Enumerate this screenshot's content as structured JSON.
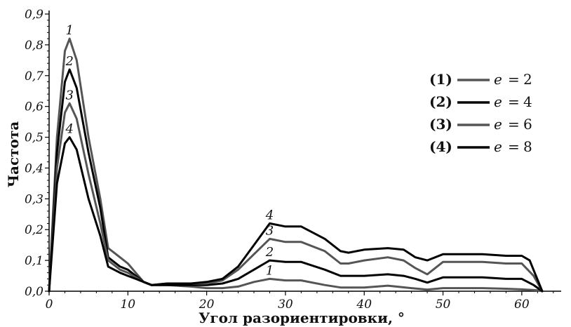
{
  "chart_data": {
    "type": "line",
    "xlabel": "Угол разориентировки, °",
    "ylabel": "Частота",
    "xlim": [
      0,
      65
    ],
    "ylim": [
      0,
      0.9
    ],
    "xticks": [
      "0",
      "10",
      "20",
      "30",
      "40",
      "50",
      "60"
    ],
    "yticks": [
      "0,0",
      "0,1",
      "0,2",
      "0,3",
      "0,4",
      "0,5",
      "0,6",
      "0,7",
      "0,8",
      "0,9"
    ],
    "grid": false,
    "legend_position": "right",
    "series": [
      {
        "id": "1",
        "label": "(1)",
        "legend_var": "e",
        "legend_value": "2",
        "color": "#555555",
        "peak_label": {
          "x": 2.6,
          "y": 0.82
        },
        "mid_label": {
          "x": 28,
          "y": 0.04
        },
        "points": [
          [
            0,
            0
          ],
          [
            1,
            0.5
          ],
          [
            2,
            0.78
          ],
          [
            2.6,
            0.82
          ],
          [
            3.5,
            0.75
          ],
          [
            5,
            0.5
          ],
          [
            6.5,
            0.3
          ],
          [
            7.5,
            0.14
          ],
          [
            9,
            0.11
          ],
          [
            10,
            0.09
          ],
          [
            11,
            0.06
          ],
          [
            12,
            0.03
          ],
          [
            13,
            0.02
          ],
          [
            15,
            0.02
          ],
          [
            18,
            0.015
          ],
          [
            20,
            0.01
          ],
          [
            22,
            0.01
          ],
          [
            24,
            0.015
          ],
          [
            26,
            0.03
          ],
          [
            28,
            0.04
          ],
          [
            30,
            0.035
          ],
          [
            32,
            0.035
          ],
          [
            35,
            0.02
          ],
          [
            37,
            0.012
          ],
          [
            40,
            0.012
          ],
          [
            43,
            0.018
          ],
          [
            46,
            0.01
          ],
          [
            48,
            0.005
          ],
          [
            50,
            0.01
          ],
          [
            55,
            0.01
          ],
          [
            58,
            0.008
          ],
          [
            60,
            0.006
          ],
          [
            62,
            0.003
          ],
          [
            62.6,
            0
          ]
        ]
      },
      {
        "id": "2",
        "label": "(2)",
        "legend_var": "e",
        "legend_value": "4",
        "color": "#000000",
        "peak_label": {
          "x": 2.6,
          "y": 0.72
        },
        "mid_label": {
          "x": 28,
          "y": 0.1
        },
        "points": [
          [
            0,
            0
          ],
          [
            1,
            0.45
          ],
          [
            2,
            0.68
          ],
          [
            2.6,
            0.72
          ],
          [
            3.5,
            0.66
          ],
          [
            5,
            0.45
          ],
          [
            6.5,
            0.27
          ],
          [
            7.5,
            0.11
          ],
          [
            9,
            0.08
          ],
          [
            10,
            0.07
          ],
          [
            11,
            0.05
          ],
          [
            12,
            0.03
          ],
          [
            13,
            0.02
          ],
          [
            15,
            0.02
          ],
          [
            18,
            0.02
          ],
          [
            20,
            0.02
          ],
          [
            22,
            0.025
          ],
          [
            24,
            0.04
          ],
          [
            26,
            0.07
          ],
          [
            28,
            0.1
          ],
          [
            30,
            0.095
          ],
          [
            32,
            0.095
          ],
          [
            35,
            0.07
          ],
          [
            37,
            0.05
          ],
          [
            40,
            0.05
          ],
          [
            43,
            0.055
          ],
          [
            45,
            0.05
          ],
          [
            46.5,
            0.04
          ],
          [
            48,
            0.028
          ],
          [
            50,
            0.045
          ],
          [
            55,
            0.045
          ],
          [
            58,
            0.04
          ],
          [
            60,
            0.04
          ],
          [
            61.5,
            0.02
          ],
          [
            62.6,
            0
          ]
        ]
      },
      {
        "id": "3",
        "label": "(3)",
        "legend_var": "e",
        "legend_value": "6",
        "color": "#555555",
        "peak_label": {
          "x": 2.6,
          "y": 0.61
        },
        "mid_label": {
          "x": 28,
          "y": 0.17
        },
        "points": [
          [
            0,
            0
          ],
          [
            1,
            0.4
          ],
          [
            2,
            0.58
          ],
          [
            2.6,
            0.61
          ],
          [
            3.5,
            0.56
          ],
          [
            5,
            0.38
          ],
          [
            6.5,
            0.22
          ],
          [
            7.5,
            0.1
          ],
          [
            9,
            0.07
          ],
          [
            10,
            0.06
          ],
          [
            11,
            0.045
          ],
          [
            12,
            0.03
          ],
          [
            13,
            0.02
          ],
          [
            15,
            0.025
          ],
          [
            18,
            0.025
          ],
          [
            20,
            0.025
          ],
          [
            22,
            0.035
          ],
          [
            24,
            0.07
          ],
          [
            26,
            0.12
          ],
          [
            28,
            0.17
          ],
          [
            30,
            0.16
          ],
          [
            32,
            0.16
          ],
          [
            35,
            0.13
          ],
          [
            37,
            0.09
          ],
          [
            38,
            0.09
          ],
          [
            40,
            0.1
          ],
          [
            43,
            0.11
          ],
          [
            45,
            0.1
          ],
          [
            46.5,
            0.075
          ],
          [
            48,
            0.055
          ],
          [
            50,
            0.095
          ],
          [
            55,
            0.095
          ],
          [
            58,
            0.09
          ],
          [
            60,
            0.09
          ],
          [
            61.5,
            0.05
          ],
          [
            62.6,
            0
          ]
        ]
      },
      {
        "id": "4",
        "label": "(4)",
        "legend_var": "e",
        "legend_value": "8",
        "color": "#000000",
        "peak_label": {
          "x": 2.6,
          "y": 0.5
        },
        "mid_label": {
          "x": 28,
          "y": 0.22
        },
        "points": [
          [
            0,
            0
          ],
          [
            1,
            0.35
          ],
          [
            2,
            0.48
          ],
          [
            2.6,
            0.5
          ],
          [
            3.5,
            0.46
          ],
          [
            5,
            0.3
          ],
          [
            6.5,
            0.18
          ],
          [
            7.5,
            0.08
          ],
          [
            9,
            0.06
          ],
          [
            10,
            0.05
          ],
          [
            11,
            0.04
          ],
          [
            12,
            0.03
          ],
          [
            13,
            0.02
          ],
          [
            15,
            0.025
          ],
          [
            18,
            0.025
          ],
          [
            20,
            0.03
          ],
          [
            22,
            0.04
          ],
          [
            24,
            0.08
          ],
          [
            26,
            0.15
          ],
          [
            28,
            0.22
          ],
          [
            30,
            0.21
          ],
          [
            32,
            0.21
          ],
          [
            35,
            0.17
          ],
          [
            37,
            0.13
          ],
          [
            38,
            0.125
          ],
          [
            40,
            0.135
          ],
          [
            43,
            0.14
          ],
          [
            45,
            0.135
          ],
          [
            46.5,
            0.11
          ],
          [
            48,
            0.1
          ],
          [
            50,
            0.12
          ],
          [
            55,
            0.12
          ],
          [
            58,
            0.115
          ],
          [
            60,
            0.115
          ],
          [
            61,
            0.1
          ],
          [
            62.6,
            0
          ]
        ]
      }
    ]
  }
}
